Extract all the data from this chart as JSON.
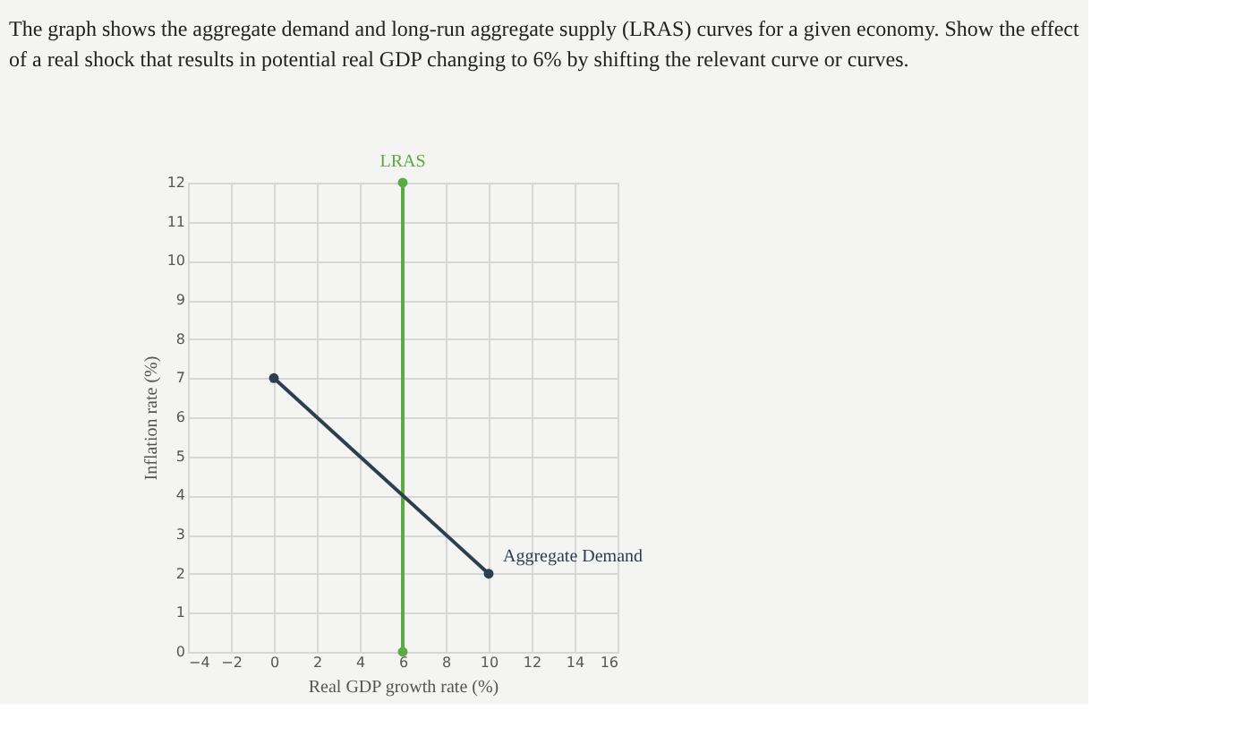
{
  "chart_data": {
    "type": "line",
    "title": "The graph shows the aggregate demand and long-run aggregate supply (LRAS) curves for a given economy. Show the effect of a real shock that results in potential real GDP changing to 6% by shifting the relevant curve or curves.",
    "xlabel": "Real GDP growth rate (%)",
    "ylabel": "Inflation rate (%)",
    "series": [
      {
        "name": "LRAS",
        "color": "#5aab44",
        "x": [
          6,
          6
        ],
        "values": [
          0,
          12
        ]
      },
      {
        "name": "Aggregate Demand",
        "color": "#2f3e4e",
        "x": [
          0,
          10
        ],
        "values": [
          7,
          2
        ]
      }
    ],
    "xlim": [
      -4,
      16
    ],
    "xticks": [
      -4,
      -2,
      0,
      2,
      4,
      6,
      8,
      10,
      12,
      14,
      16
    ],
    "ylim": [
      0,
      12
    ],
    "yticks": [
      0,
      1,
      2,
      3,
      4,
      5,
      6,
      7,
      8,
      9,
      10,
      11,
      12
    ],
    "grid": true,
    "marker": "circle",
    "line_style": "solid"
  }
}
